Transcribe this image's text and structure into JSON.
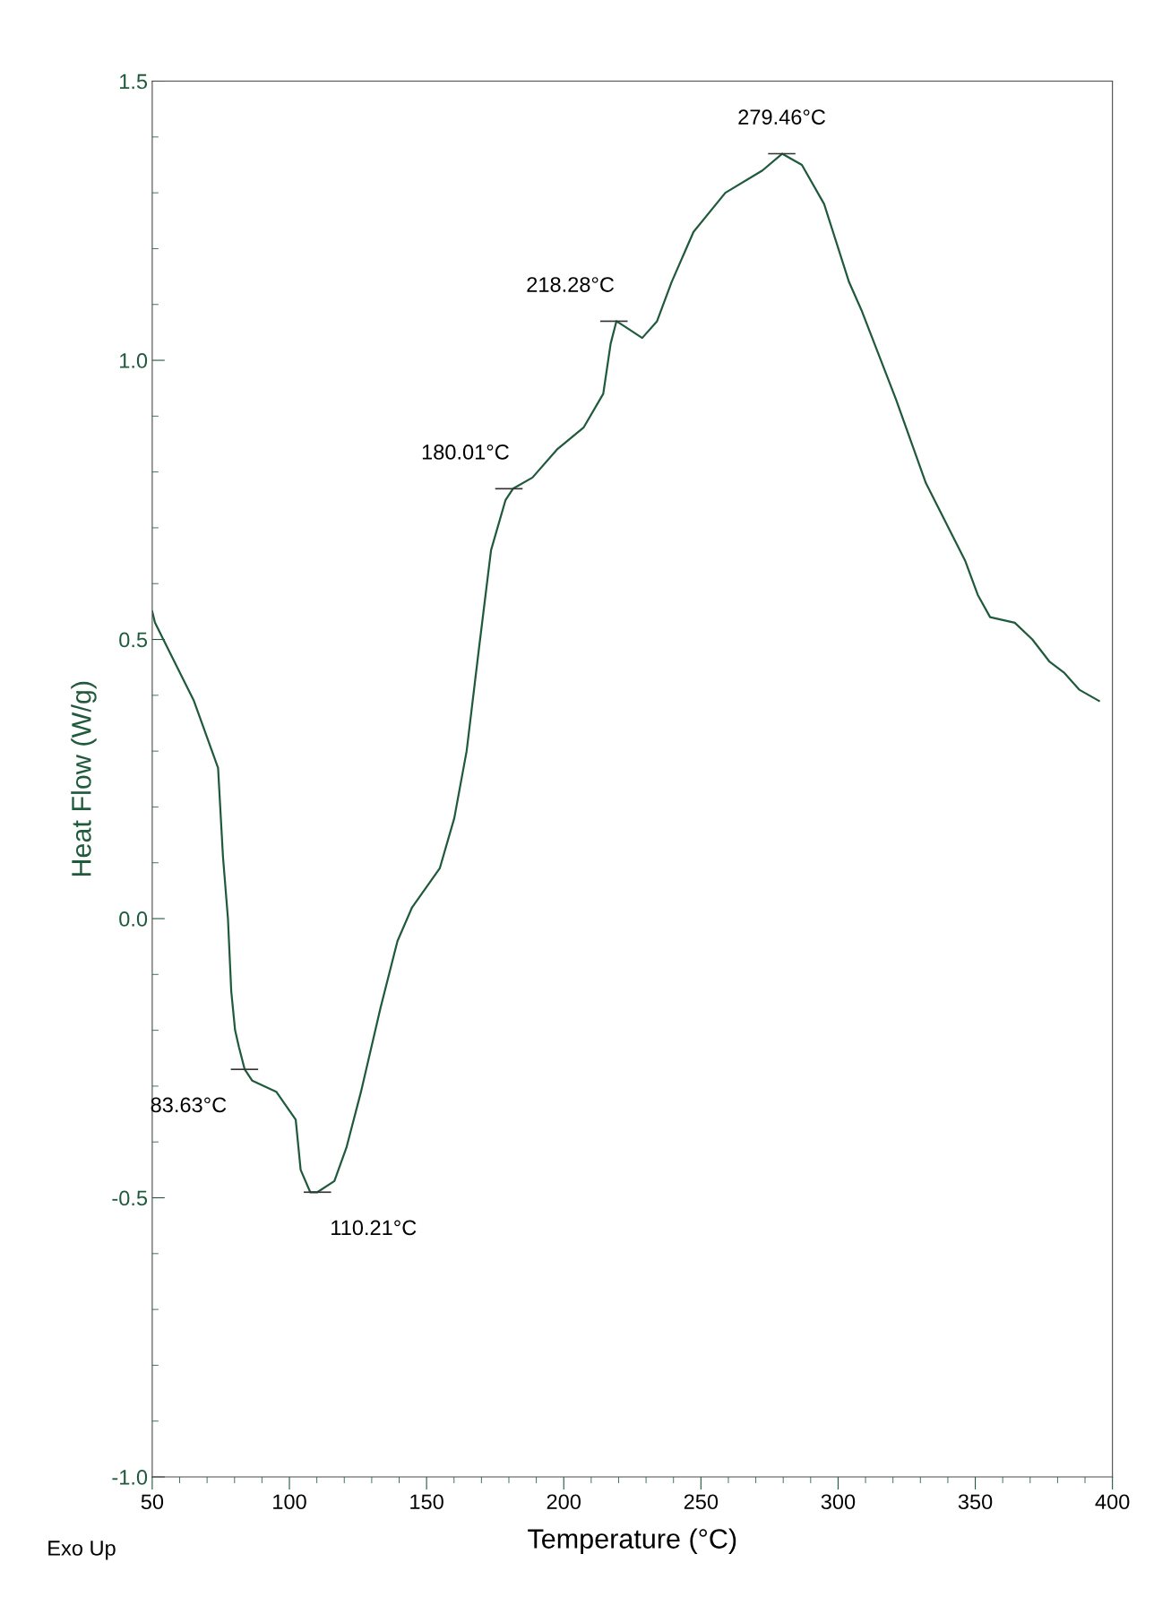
{
  "chart_data": {
    "type": "line",
    "xlabel": "Temperature (°C)",
    "ylabel": "Heat Flow (W/g)",
    "xlim": [
      50,
      400
    ],
    "ylim": [
      -1.0,
      1.5
    ],
    "xticks": [
      50,
      100,
      150,
      200,
      250,
      300,
      350,
      400
    ],
    "yticks": [
      {
        "value": 1.5,
        "label": "1.5"
      },
      {
        "value": 1.0,
        "label": "1.0"
      },
      {
        "value": 0.5,
        "label": "0.5"
      },
      {
        "value": 0.0,
        "label": "0.0"
      },
      {
        "value": -0.5,
        "label": "-0.5"
      },
      {
        "value": -1.0,
        "label": "-1.0"
      }
    ],
    "grid": false,
    "legend": false,
    "series": [
      {
        "color": "#1f5a3c",
        "x": [
          50,
          51,
          65.2,
          74,
          75.8,
          77.6,
          78.8,
          80.2,
          81.6,
          83.7,
          86.4,
          95.2,
          102.3,
          104.1,
          107.6,
          110.2,
          116.4,
          120.8,
          126.1,
          133.2,
          139.4,
          144.7,
          154.8,
          160.1,
          164.6,
          169,
          173.5,
          178.8,
          181.5,
          188.6,
          197.5,
          207.3,
          214.4,
          217.1,
          219.2,
          222.4,
          228.6,
          234,
          239.3,
          247.3,
          258.9,
          272.4,
          279.6,
          286.8,
          294.9,
          304,
          308.5,
          321.1,
          332,
          346.4,
          350.9,
          355.4,
          364.4,
          370.8,
          377.1,
          382.5,
          387.9,
          395.1
        ],
        "values": [
          0.55,
          0.53,
          0.39,
          0.27,
          0.11,
          0.0,
          -0.13,
          -0.2,
          -0.23,
          -0.27,
          -0.29,
          -0.31,
          -0.36,
          -0.45,
          -0.49,
          -0.49,
          -0.47,
          -0.41,
          -0.31,
          -0.16,
          -0.04,
          0.02,
          0.09,
          0.18,
          0.3,
          0.48,
          0.66,
          0.75,
          0.77,
          0.79,
          0.84,
          0.88,
          0.94,
          1.03,
          1.07,
          1.06,
          1.04,
          1.07,
          1.14,
          1.23,
          1.3,
          1.34,
          1.37,
          1.35,
          1.28,
          1.14,
          1.09,
          0.93,
          0.78,
          0.64,
          0.58,
          0.54,
          0.53,
          0.5,
          0.46,
          0.44,
          0.41,
          0.39
        ]
      }
    ],
    "annotations": [
      {
        "text": "83.63°C",
        "x": 83.63,
        "y": -0.27
      },
      {
        "text": "110.21°C",
        "x": 110.21,
        "y": -0.49
      },
      {
        "text": "180.01°C",
        "x": 180.01,
        "y": 0.77
      },
      {
        "text": "218.28°C",
        "x": 218.28,
        "y": 1.07
      },
      {
        "text": "279.46°C",
        "x": 279.46,
        "y": 1.37
      },
      "Exo Up"
    ]
  }
}
